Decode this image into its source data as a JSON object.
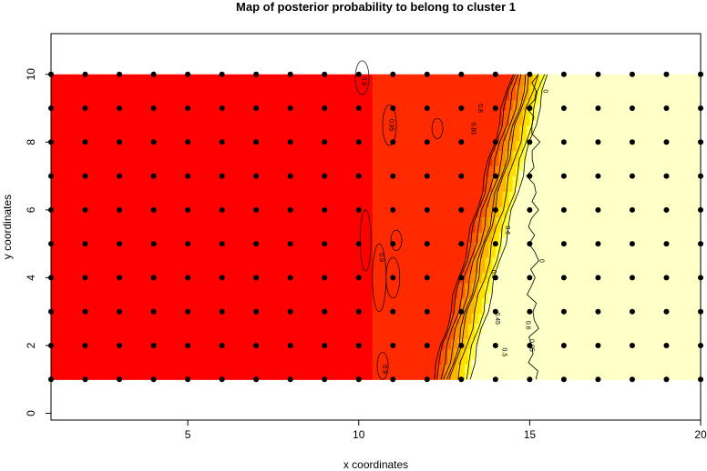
{
  "chart_data": {
    "type": "heatmap",
    "title": "Map of posterior probability to belong to cluster  1",
    "xlabel": "x coordinates",
    "ylabel": "y coordinates",
    "xlim": [
      1,
      20
    ],
    "ylim": [
      -0.2,
      11.2
    ],
    "grid_extent": {
      "x": [
        1,
        20
      ],
      "y": [
        1,
        10
      ]
    },
    "x_ticks": [
      5,
      10,
      15,
      20
    ],
    "y_ticks": [
      0,
      2,
      4,
      6,
      8,
      10
    ],
    "grid": false,
    "legend": "none",
    "colors": {
      "high": "#ff0000",
      "mid_high": "#ff5a00",
      "mid": "#ffb400",
      "mid_low": "#ffff40",
      "low": "#ffffc8",
      "contour": "#000000",
      "point": "#000000"
    },
    "probability_surface": {
      "description_values": [
        {
          "region": "x < 10.4",
          "value": 0.95
        },
        {
          "region": "10.4 <= x < boundary",
          "value": 0.9
        },
        {
          "region": "x > 14.8",
          "value": 0.0
        }
      ],
      "boundary_line": [
        {
          "y": 1,
          "x": 12.1
        },
        {
          "y": 10,
          "x": 14.4
        }
      ],
      "transition_width": 1.2
    },
    "contour_labels": [
      {
        "text": "0.9",
        "x": 10.1,
        "y": 9.8
      },
      {
        "text": "0.95",
        "x": 10.9,
        "y": 8.5
      },
      {
        "text": "0.9",
        "x": 10.6,
        "y": 4.6
      },
      {
        "text": "0.9",
        "x": 10.7,
        "y": 1.3
      },
      {
        "text": "0.85",
        "x": 13.3,
        "y": 8.4
      },
      {
        "text": "0.8",
        "x": 13.5,
        "y": 9.0
      },
      {
        "text": "0.5",
        "x": 13.9,
        "y": 4.1
      },
      {
        "text": "0.45",
        "x": 14.0,
        "y": 2.8
      },
      {
        "text": "0.5",
        "x": 14.2,
        "y": 1.8
      },
      {
        "text": "0.6",
        "x": 14.3,
        "y": 5.4
      },
      {
        "text": "0.6",
        "x": 14.9,
        "y": 2.6
      },
      {
        "text": "0.05",
        "x": 15.0,
        "y": 2.0
      },
      {
        "text": "0",
        "x": 15.3,
        "y": 4.5
      },
      {
        "text": "0",
        "x": 15.4,
        "y": 9.5
      }
    ],
    "points": {
      "x": [
        1,
        2,
        3,
        4,
        5,
        6,
        7,
        8,
        9,
        10,
        11,
        12,
        13,
        14,
        15,
        16,
        17,
        18,
        19,
        20
      ],
      "y": [
        1,
        2,
        3,
        4,
        5,
        6,
        7,
        8,
        9,
        10
      ]
    }
  }
}
